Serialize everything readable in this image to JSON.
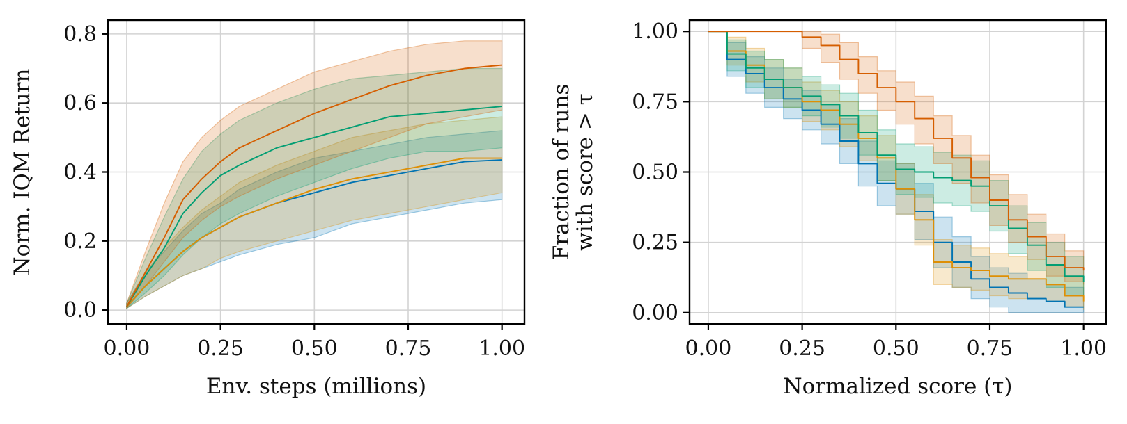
{
  "figure": {
    "colors": {
      "blue": "#0173b2",
      "orange": "#de8f05",
      "green": "#029e73",
      "red": "#d55e00"
    }
  },
  "chart_data": [
    {
      "type": "line",
      "title": "",
      "xlabel": "Env. steps (millions)",
      "ylabel": "Norm. IQM Return",
      "xlim": [
        -0.05,
        1.06
      ],
      "ylim": [
        -0.04,
        0.84
      ],
      "xticks": [
        0.0,
        0.25,
        0.5,
        0.75,
        1.0
      ],
      "xtick_labels": [
        "0.00",
        "0.25",
        "0.50",
        "0.75",
        "1.00"
      ],
      "yticks": [
        0.0,
        0.2,
        0.4,
        0.6,
        0.8
      ],
      "ytick_labels": [
        "0.0",
        "0.2",
        "0.4",
        "0.6",
        "0.8"
      ],
      "grid": true,
      "x": [
        0.0,
        0.05,
        0.1,
        0.15,
        0.2,
        0.25,
        0.3,
        0.4,
        0.5,
        0.6,
        0.7,
        0.8,
        0.9,
        1.0
      ],
      "series": [
        {
          "name": "blue",
          "color": "#0173b2",
          "values": [
            0.01,
            0.07,
            0.12,
            0.17,
            0.21,
            0.24,
            0.27,
            0.31,
            0.34,
            0.37,
            0.39,
            0.41,
            0.43,
            0.435
          ],
          "lower": [
            0.005,
            0.04,
            0.07,
            0.1,
            0.12,
            0.14,
            0.16,
            0.19,
            0.21,
            0.25,
            0.27,
            0.29,
            0.31,
            0.32
          ],
          "upper": [
            0.02,
            0.11,
            0.17,
            0.23,
            0.28,
            0.31,
            0.35,
            0.4,
            0.44,
            0.46,
            0.48,
            0.5,
            0.51,
            0.52
          ]
        },
        {
          "name": "orange",
          "color": "#de8f05",
          "values": [
            0.01,
            0.07,
            0.12,
            0.17,
            0.21,
            0.24,
            0.27,
            0.31,
            0.35,
            0.38,
            0.4,
            0.42,
            0.44,
            0.44
          ],
          "lower": [
            0.005,
            0.04,
            0.07,
            0.1,
            0.12,
            0.15,
            0.17,
            0.2,
            0.23,
            0.26,
            0.28,
            0.3,
            0.32,
            0.34
          ],
          "upper": [
            0.02,
            0.11,
            0.18,
            0.24,
            0.29,
            0.33,
            0.37,
            0.42,
            0.46,
            0.5,
            0.52,
            0.54,
            0.55,
            0.56
          ]
        },
        {
          "name": "green",
          "color": "#029e73",
          "values": [
            0.01,
            0.1,
            0.18,
            0.28,
            0.34,
            0.39,
            0.42,
            0.47,
            0.5,
            0.53,
            0.56,
            0.57,
            0.58,
            0.59
          ],
          "lower": [
            0.005,
            0.05,
            0.1,
            0.16,
            0.21,
            0.25,
            0.28,
            0.33,
            0.37,
            0.41,
            0.44,
            0.46,
            0.46,
            0.47
          ],
          "upper": [
            0.02,
            0.15,
            0.27,
            0.38,
            0.46,
            0.51,
            0.55,
            0.6,
            0.64,
            0.67,
            0.68,
            0.69,
            0.7,
            0.7
          ]
        },
        {
          "name": "red",
          "color": "#d55e00",
          "values": [
            0.01,
            0.11,
            0.21,
            0.32,
            0.38,
            0.43,
            0.47,
            0.52,
            0.57,
            0.61,
            0.65,
            0.68,
            0.7,
            0.71
          ],
          "lower": [
            0.005,
            0.07,
            0.14,
            0.21,
            0.26,
            0.3,
            0.33,
            0.38,
            0.42,
            0.46,
            0.5,
            0.54,
            0.56,
            0.58
          ],
          "upper": [
            0.02,
            0.17,
            0.31,
            0.43,
            0.5,
            0.55,
            0.59,
            0.64,
            0.69,
            0.72,
            0.75,
            0.77,
            0.78,
            0.78
          ]
        }
      ]
    },
    {
      "type": "line",
      "title": "",
      "xlabel": "Normalized score (τ)",
      "ylabel_line1": "Fraction of runs",
      "ylabel_line2": "with score > τ",
      "xlim": [
        -0.05,
        1.06
      ],
      "ylim": [
        -0.04,
        1.04
      ],
      "xticks": [
        0.0,
        0.25,
        0.5,
        0.75,
        1.0
      ],
      "xtick_labels": [
        "0.00",
        "0.25",
        "0.50",
        "0.75",
        "1.00"
      ],
      "yticks": [
        0.0,
        0.25,
        0.5,
        0.75,
        1.0
      ],
      "ytick_labels": [
        "0.00",
        "0.25",
        "0.50",
        "0.75",
        "1.00"
      ],
      "grid": true,
      "step": true,
      "x": [
        0.0,
        0.05,
        0.1,
        0.15,
        0.2,
        0.25,
        0.3,
        0.35,
        0.4,
        0.45,
        0.5,
        0.55,
        0.6,
        0.65,
        0.7,
        0.75,
        0.8,
        0.85,
        0.9,
        0.95,
        1.0
      ],
      "series": [
        {
          "name": "blue",
          "color": "#0173b2",
          "values": [
            1.0,
            0.9,
            0.85,
            0.8,
            0.76,
            0.72,
            0.67,
            0.61,
            0.53,
            0.46,
            0.44,
            0.36,
            0.25,
            0.18,
            0.12,
            0.09,
            0.07,
            0.05,
            0.04,
            0.02,
            0.02
          ],
          "lower": [
            1.0,
            0.84,
            0.78,
            0.73,
            0.69,
            0.65,
            0.6,
            0.53,
            0.45,
            0.38,
            0.35,
            0.26,
            0.16,
            0.09,
            0.05,
            0.02,
            0.0,
            0.0,
            0.0,
            0.0,
            0.0
          ],
          "upper": [
            1.0,
            0.96,
            0.91,
            0.87,
            0.83,
            0.79,
            0.74,
            0.69,
            0.61,
            0.54,
            0.53,
            0.46,
            0.34,
            0.27,
            0.2,
            0.16,
            0.14,
            0.12,
            0.1,
            0.09,
            0.09
          ]
        },
        {
          "name": "orange",
          "color": "#de8f05",
          "values": [
            1.0,
            0.93,
            0.88,
            0.83,
            0.8,
            0.75,
            0.72,
            0.67,
            0.62,
            0.55,
            0.44,
            0.33,
            0.18,
            0.16,
            0.15,
            0.13,
            0.12,
            0.12,
            0.1,
            0.06,
            0.04
          ],
          "lower": [
            1.0,
            0.88,
            0.82,
            0.76,
            0.73,
            0.68,
            0.65,
            0.59,
            0.54,
            0.47,
            0.35,
            0.24,
            0.1,
            0.09,
            0.08,
            0.06,
            0.05,
            0.05,
            0.04,
            0.02,
            0.01
          ],
          "upper": [
            1.0,
            0.98,
            0.94,
            0.9,
            0.87,
            0.82,
            0.79,
            0.75,
            0.7,
            0.63,
            0.53,
            0.42,
            0.26,
            0.24,
            0.23,
            0.21,
            0.2,
            0.19,
            0.17,
            0.13,
            0.11
          ]
        },
        {
          "name": "green",
          "color": "#029e73",
          "values": [
            1.0,
            0.92,
            0.87,
            0.83,
            0.8,
            0.77,
            0.74,
            0.7,
            0.64,
            0.56,
            0.51,
            0.5,
            0.48,
            0.47,
            0.45,
            0.38,
            0.3,
            0.24,
            0.17,
            0.13,
            0.11
          ],
          "lower": [
            1.0,
            0.86,
            0.8,
            0.76,
            0.73,
            0.7,
            0.66,
            0.62,
            0.56,
            0.47,
            0.42,
            0.41,
            0.39,
            0.38,
            0.36,
            0.29,
            0.21,
            0.15,
            0.09,
            0.06,
            0.05
          ],
          "upper": [
            1.0,
            0.97,
            0.93,
            0.9,
            0.87,
            0.84,
            0.81,
            0.78,
            0.72,
            0.65,
            0.6,
            0.59,
            0.57,
            0.56,
            0.54,
            0.47,
            0.38,
            0.32,
            0.25,
            0.2,
            0.18
          ]
        },
        {
          "name": "red",
          "color": "#d55e00",
          "values": [
            1.0,
            1.0,
            1.0,
            1.0,
            1.0,
            0.98,
            0.95,
            0.9,
            0.85,
            0.8,
            0.75,
            0.69,
            0.62,
            0.55,
            0.48,
            0.4,
            0.33,
            0.27,
            0.2,
            0.16,
            0.15
          ],
          "lower": [
            1.0,
            1.0,
            1.0,
            1.0,
            1.0,
            0.94,
            0.89,
            0.83,
            0.78,
            0.72,
            0.67,
            0.6,
            0.53,
            0.46,
            0.39,
            0.31,
            0.25,
            0.19,
            0.13,
            0.11,
            0.1
          ],
          "upper": [
            1.0,
            1.0,
            1.0,
            1.0,
            1.0,
            1.0,
            0.99,
            0.96,
            0.91,
            0.86,
            0.82,
            0.77,
            0.7,
            0.63,
            0.56,
            0.49,
            0.42,
            0.35,
            0.28,
            0.22,
            0.2
          ]
        }
      ]
    }
  ]
}
